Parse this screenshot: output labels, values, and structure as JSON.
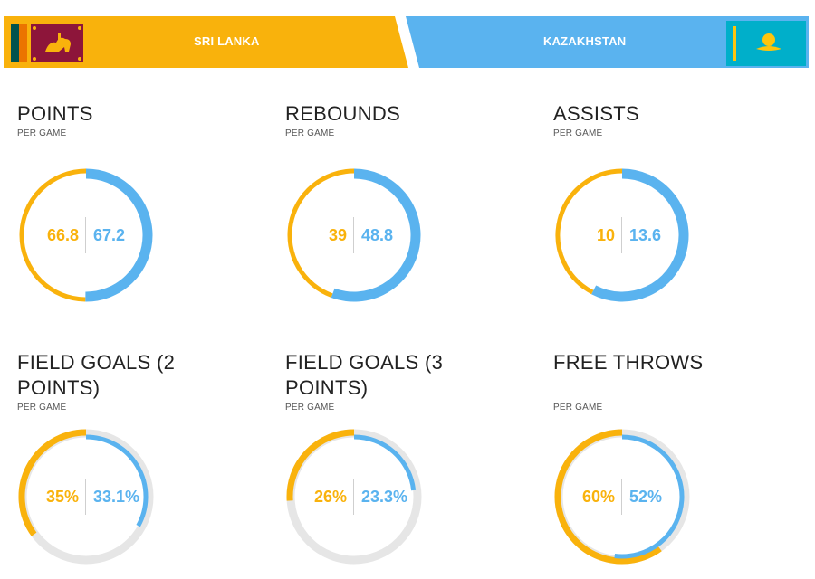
{
  "colors": {
    "home": "#f9b20c",
    "away": "#5ab3ef",
    "track": "#e6e6e6"
  },
  "teams": {
    "home": {
      "name": "SRI LANKA",
      "flag_icon": "sri-lanka-flag-icon"
    },
    "away": {
      "name": "KAZAKHSTAN",
      "flag_icon": "kazakhstan-flag-icon"
    }
  },
  "stats": [
    {
      "id": "points",
      "title": "POINTS",
      "subtitle": "PER GAME",
      "home": "66.8",
      "away": "67.2",
      "mode": "share",
      "home_value": 66.8,
      "away_value": 67.2
    },
    {
      "id": "rebounds",
      "title": "REBOUNDS",
      "subtitle": "PER GAME",
      "home": "39",
      "away": "48.8",
      "mode": "share",
      "home_value": 39,
      "away_value": 48.8
    },
    {
      "id": "assists",
      "title": "ASSISTS",
      "subtitle": "PER GAME",
      "home": "10",
      "away": "13.6",
      "mode": "share",
      "home_value": 10,
      "away_value": 13.6
    },
    {
      "id": "fg2",
      "title": "FIELD GOALS (2 POINTS)",
      "subtitle": "PER GAME",
      "home": "35%",
      "away": "33.1%",
      "mode": "percent",
      "home_value": 35,
      "away_value": 33.1
    },
    {
      "id": "fg3",
      "title": "FIELD GOALS (3 POINTS)",
      "subtitle": "PER GAME",
      "home": "26%",
      "away": "23.3%",
      "mode": "percent",
      "home_value": 26,
      "away_value": 23.3
    },
    {
      "id": "ft",
      "title": "FREE THROWS",
      "subtitle": "PER GAME",
      "home": "60%",
      "away": "52%",
      "mode": "percent",
      "home_value": 60,
      "away_value": 52
    }
  ]
}
